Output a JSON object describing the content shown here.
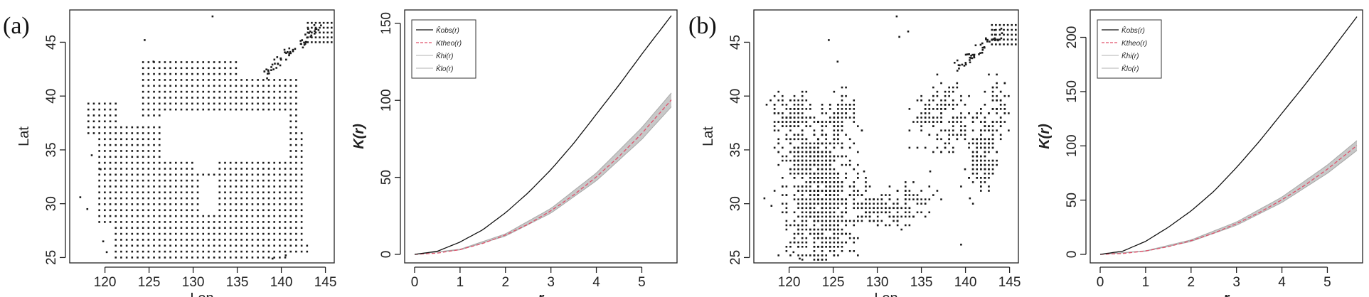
{
  "panels": [
    {
      "letter": "(a)"
    },
    {
      "letter": "(b)"
    }
  ],
  "legend_labels": {
    "obs": "K̂obs(r)",
    "theo": "Ktheo(r)",
    "hi": "K̂hi(r)",
    "lo": "K̂lo(r)"
  },
  "colors": {
    "obs": "#111111",
    "theo": "#e0506a",
    "envelope": "#c8c8c8",
    "points": "#1a1a1a"
  },
  "chart_data": [
    {
      "type": "scatter",
      "panel": "(a)",
      "xlabel": "Lon",
      "ylabel": "Lat",
      "xlim": [
        116,
        146
      ],
      "ylim": [
        24.5,
        48
      ],
      "xticks": [
        120,
        125,
        130,
        135,
        140,
        145
      ],
      "yticks": [
        25,
        30,
        35,
        40,
        45
      ],
      "pattern": "dense-grid"
    },
    {
      "type": "line",
      "panel": "(a)",
      "xlabel": "r",
      "ylabel": "K(r)",
      "xlim": [
        0,
        5.65
      ],
      "ylim": [
        0,
        155
      ],
      "xticks": [
        0,
        1,
        2,
        3,
        4,
        5
      ],
      "yticks": [
        0,
        50,
        100,
        150
      ],
      "legend_position": "top-left",
      "series": [
        {
          "key": "obs",
          "x": [
            0,
            0.5,
            1,
            1.5,
            2,
            2.5,
            3,
            3.5,
            4,
            4.5,
            5,
            5.65
          ],
          "y": [
            0,
            2,
            8,
            16,
            27,
            40,
            55,
            72,
            91,
            110,
            130,
            155
          ]
        },
        {
          "key": "theo",
          "x": [
            0,
            0.5,
            1,
            1.5,
            2,
            2.5,
            3,
            3.5,
            4,
            4.5,
            5,
            5.65
          ],
          "y": [
            0,
            0.8,
            3.1,
            7.1,
            12.6,
            19.6,
            28.3,
            38.5,
            50.3,
            63.6,
            78.5,
            100.3
          ]
        },
        {
          "key": "hi",
          "x": [
            0,
            1,
            2,
            3,
            4,
            5,
            5.65
          ],
          "y": [
            0,
            3.3,
            13.3,
            29.8,
            52.8,
            82.3,
            104.8
          ]
        },
        {
          "key": "lo",
          "x": [
            0,
            1,
            2,
            3,
            4,
            5,
            5.65
          ],
          "y": [
            0,
            2.9,
            11.9,
            26.8,
            47.8,
            74.7,
            95.8
          ]
        }
      ]
    },
    {
      "type": "scatter",
      "panel": "(b)",
      "xlabel": "Lon",
      "ylabel": "Lat",
      "xlim": [
        116,
        146
      ],
      "ylim": [
        24.5,
        48
      ],
      "xticks": [
        120,
        125,
        130,
        135,
        140,
        145
      ],
      "yticks": [
        25,
        30,
        35,
        40,
        45
      ],
      "pattern": "sparse-clustered"
    },
    {
      "type": "line",
      "panel": "(b)",
      "xlabel": "r",
      "ylabel": "K(r)",
      "xlim": [
        0,
        5.65
      ],
      "ylim": [
        0,
        220
      ],
      "xticks": [
        0,
        1,
        2,
        3,
        4,
        5
      ],
      "yticks": [
        0,
        50,
        100,
        150,
        200
      ],
      "legend_position": "top-left",
      "series": [
        {
          "key": "obs",
          "x": [
            0,
            0.5,
            1,
            1.5,
            2,
            2.5,
            3,
            3.5,
            4,
            4.5,
            5,
            5.65
          ],
          "y": [
            0,
            3,
            12,
            25,
            40,
            58,
            80,
            104,
            130,
            156,
            183,
            219
          ]
        },
        {
          "key": "theo",
          "x": [
            0,
            0.5,
            1,
            1.5,
            2,
            2.5,
            3,
            3.5,
            4,
            4.5,
            5,
            5.65
          ],
          "y": [
            0,
            0.8,
            3.1,
            7.1,
            12.6,
            19.6,
            28.3,
            38.5,
            50.3,
            63.6,
            78.5,
            100.3
          ]
        },
        {
          "key": "hi",
          "x": [
            0,
            1,
            2,
            3,
            4,
            5,
            5.65
          ],
          "y": [
            0,
            3.3,
            13.3,
            29.8,
            52.8,
            82.3,
            104.8
          ]
        },
        {
          "key": "lo",
          "x": [
            0,
            1,
            2,
            3,
            4,
            5,
            5.65
          ],
          "y": [
            0,
            2.9,
            11.9,
            26.8,
            47.8,
            74.7,
            95.8
          ]
        }
      ]
    }
  ]
}
